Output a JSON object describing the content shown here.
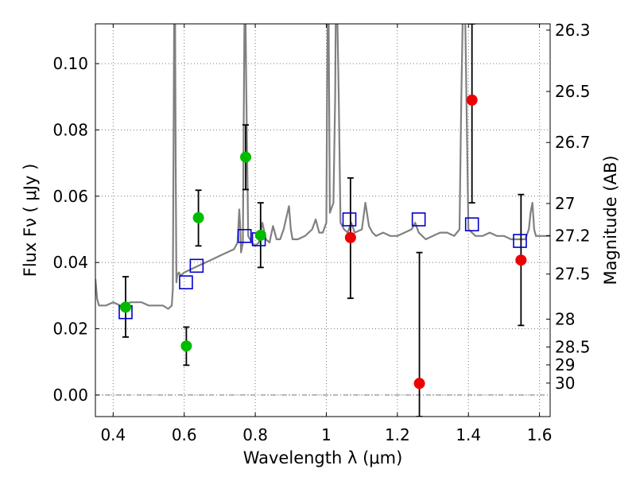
{
  "chart_data": {
    "type": "scatter",
    "title": "",
    "xlabel": "Wavelength  λ (μm)",
    "ylabel": "Flux  Fν  ( μJy )",
    "ylabel_right": "Magnitude (AB)",
    "xlim": [
      0.35,
      1.63
    ],
    "ylim": [
      -0.0065,
      0.112
    ],
    "grid": true,
    "x_ticks": [
      0.4,
      0.6,
      0.8,
      1.0,
      1.2,
      1.4,
      1.6
    ],
    "x_tick_labels": [
      "0.4",
      "0.6",
      "0.8",
      "1",
      "1.2",
      "1.4",
      "1.6"
    ],
    "y_ticks": [
      0.0,
      0.02,
      0.04,
      0.06,
      0.08,
      0.1
    ],
    "y_tick_labels": [
      "0.00",
      "0.02",
      "0.04",
      "0.06",
      "0.08",
      "0.10"
    ],
    "right_ticks": [
      {
        "label": "26.3",
        "flux": 0.1101
      },
      {
        "label": "26.5",
        "flux": 0.0916
      },
      {
        "label": "26.7",
        "flux": 0.0762
      },
      {
        "label": "27",
        "flux": 0.0578
      },
      {
        "label": "27.2",
        "flux": 0.0481
      },
      {
        "label": "27.5",
        "flux": 0.0365
      },
      {
        "label": "28",
        "flux": 0.0229
      },
      {
        "label": "28.5",
        "flux": 0.0145
      },
      {
        "label": "29",
        "flux": 0.0091
      },
      {
        "label": "30",
        "flux": 0.0036
      }
    ],
    "colors": {
      "model": "#808080",
      "model_phot": "#0000cc",
      "green": "#00bb00",
      "red": "#ee0000",
      "errorbar": "#000000",
      "grid": "#777777",
      "zero_line": "#777777"
    },
    "series": [
      {
        "name": "model_spectrum",
        "type": "line",
        "x": [
          0.35,
          0.355,
          0.36,
          0.38,
          0.4,
          0.42,
          0.45,
          0.48,
          0.5,
          0.52,
          0.54,
          0.555,
          0.565,
          0.568,
          0.57,
          0.572,
          0.574,
          0.576,
          0.578,
          0.58,
          0.585,
          0.59,
          0.6,
          0.62,
          0.64,
          0.66,
          0.68,
          0.7,
          0.72,
          0.74,
          0.75,
          0.755,
          0.758,
          0.76,
          0.765,
          0.768,
          0.77,
          0.772,
          0.775,
          0.78,
          0.79,
          0.8,
          0.81,
          0.82,
          0.83,
          0.84,
          0.85,
          0.86,
          0.87,
          0.88,
          0.895,
          0.9,
          0.905,
          0.92,
          0.94,
          0.96,
          0.97,
          0.98,
          0.99,
          1.0,
          1.002,
          1.004,
          1.006,
          1.008,
          1.01,
          1.02,
          1.025,
          1.027,
          1.03,
          1.035,
          1.04,
          1.05,
          1.06,
          1.07,
          1.08,
          1.1,
          1.11,
          1.12,
          1.13,
          1.14,
          1.16,
          1.18,
          1.2,
          1.22,
          1.24,
          1.25,
          1.26,
          1.27,
          1.28,
          1.3,
          1.32,
          1.34,
          1.36,
          1.375,
          1.38,
          1.385,
          1.39,
          1.4,
          1.42,
          1.44,
          1.46,
          1.48,
          1.5,
          1.52,
          1.54,
          1.56,
          1.57,
          1.575,
          1.58,
          1.585,
          1.59,
          1.6,
          1.62,
          1.63
        ],
        "y": [
          0.035,
          0.029,
          0.027,
          0.027,
          0.028,
          0.027,
          0.028,
          0.028,
          0.027,
          0.027,
          0.027,
          0.026,
          0.027,
          0.032,
          0.075,
          0.12,
          0.12,
          0.07,
          0.034,
          0.036,
          0.037,
          0.036,
          0.037,
          0.038,
          0.039,
          0.04,
          0.041,
          0.042,
          0.043,
          0.044,
          0.046,
          0.056,
          0.05,
          0.043,
          0.046,
          0.09,
          0.12,
          0.12,
          0.09,
          0.048,
          0.046,
          0.045,
          0.046,
          0.052,
          0.047,
          0.046,
          0.051,
          0.047,
          0.047,
          0.05,
          0.057,
          0.05,
          0.047,
          0.047,
          0.048,
          0.05,
          0.053,
          0.049,
          0.049,
          0.052,
          0.09,
          0.12,
          0.12,
          0.09,
          0.055,
          0.058,
          0.09,
          0.12,
          0.12,
          0.09,
          0.052,
          0.05,
          0.049,
          0.052,
          0.049,
          0.05,
          0.058,
          0.051,
          0.049,
          0.048,
          0.049,
          0.048,
          0.048,
          0.049,
          0.05,
          0.052,
          0.049,
          0.048,
          0.047,
          0.048,
          0.049,
          0.049,
          0.048,
          0.05,
          0.09,
          0.12,
          0.12,
          0.05,
          0.048,
          0.048,
          0.049,
          0.048,
          0.048,
          0.047,
          0.047,
          0.047,
          0.05,
          0.055,
          0.058,
          0.05,
          0.048,
          0.048,
          0.048,
          0.048
        ]
      },
      {
        "name": "model_photometry",
        "type": "scatter",
        "marker": "square",
        "x": [
          0.435,
          0.605,
          0.635,
          0.77,
          0.81,
          1.065,
          1.26,
          1.41,
          1.545
        ],
        "y": [
          0.025,
          0.034,
          0.039,
          0.048,
          0.047,
          0.053,
          0.053,
          0.0515,
          0.0465
        ]
      },
      {
        "name": "observed_green",
        "type": "scatter",
        "marker": "circle",
        "x": [
          0.435,
          0.606,
          0.64,
          0.773,
          0.815
        ],
        "y": [
          0.0265,
          0.0148,
          0.0535,
          0.0718,
          0.0482
        ],
        "yerr_low": [
          0.0175,
          0.009,
          0.045,
          0.062,
          0.0385
        ],
        "yerr_high": [
          0.0357,
          0.0205,
          0.0618,
          0.0815,
          0.058
        ]
      },
      {
        "name": "observed_red",
        "type": "scatter",
        "marker": "circle",
        "x": [
          1.068,
          1.262,
          1.41,
          1.548
        ],
        "y": [
          0.0475,
          0.0035,
          0.089,
          0.0407
        ],
        "yerr_low": [
          0.0292,
          -0.0065,
          0.058,
          0.021
        ],
        "yerr_high": [
          0.0655,
          0.043,
          0.112,
          0.0605
        ]
      }
    ]
  }
}
